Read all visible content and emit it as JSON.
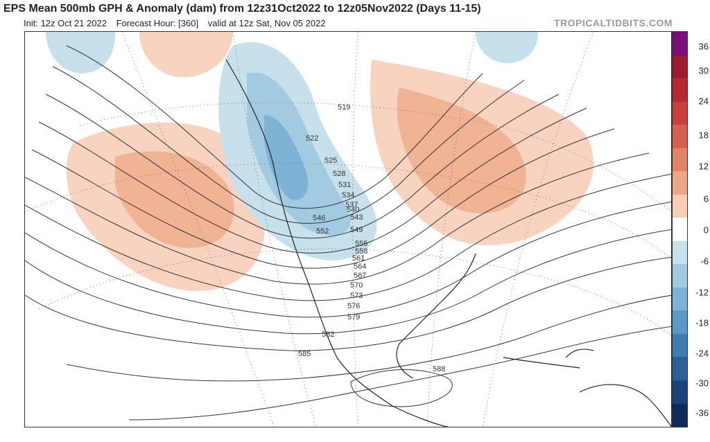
{
  "header": {
    "title": "EPS Mean 500mb GPH & Anomaly (dam) from 12z31Oct2022 to 12z05Nov2022 (Days 11-15)",
    "init": "Init: 12z Oct 21 2022",
    "forecast_hour": "Forecast Hour: [360]",
    "valid": "valid at 12z Sat, Nov 05 2022",
    "brand": "TROPICALTIDBITS.COM"
  },
  "colorbar": {
    "colors": [
      "#7a0f7a",
      "#9e1a2e",
      "#b52a31",
      "#c7403c",
      "#d4614f",
      "#e08466",
      "#eca786",
      "#f6cdb5",
      "#ffffff",
      "#c6e0ec",
      "#a2cbe2",
      "#7eb3d6",
      "#5a98c6",
      "#3f7cb4",
      "#2a5f99",
      "#1a457c",
      "#0e2c5a"
    ],
    "ticks": [
      "36",
      "30",
      "24",
      "18",
      "12",
      "6",
      "0",
      "-6",
      "-12",
      "-18",
      "-24",
      "-30",
      "-36"
    ]
  },
  "map": {
    "contour_labels": [
      "519",
      "522",
      "525",
      "528",
      "531",
      "534",
      "537",
      "540",
      "543",
      "546",
      "549",
      "552",
      "555",
      "558",
      "561",
      "564",
      "567",
      "570",
      "573",
      "576",
      "579",
      "582",
      "585",
      "588"
    ]
  }
}
